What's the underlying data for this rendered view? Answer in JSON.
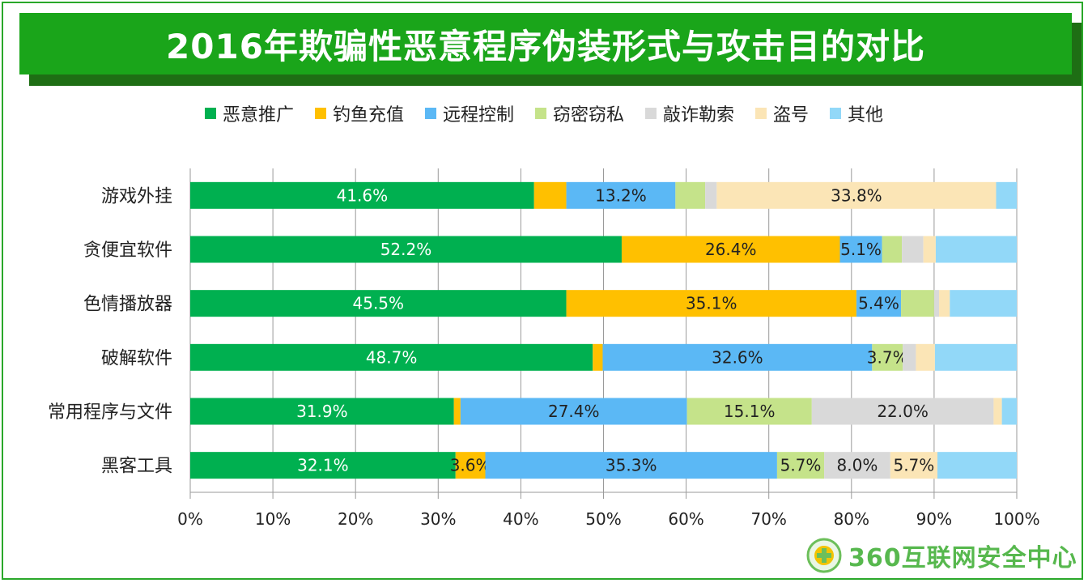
{
  "title": "2016年欺骗性恶意程序伪装形式与攻击目的对比",
  "logo_text": "360互联网安全中心",
  "chart_data": {
    "type": "bar",
    "orientation": "horizontal",
    "stacked": "percent",
    "categories": [
      "游戏外挂",
      "贪便宜软件",
      "色情播放器",
      "破解软件",
      "常用程序与文件",
      "黑客工具"
    ],
    "series": [
      {
        "name": "恶意推广",
        "color": "#00b050",
        "values": [
          41.6,
          52.2,
          45.5,
          48.7,
          31.9,
          32.1
        ],
        "labels": [
          "41.6%",
          "52.2%",
          "45.5%",
          "48.7%",
          "31.9%",
          "32.1%"
        ]
      },
      {
        "name": "钓鱼充值",
        "color": "#ffc000",
        "values": [
          3.9,
          26.4,
          35.1,
          1.2,
          0.8,
          3.6
        ],
        "labels": [
          "",
          "26.4%",
          "35.1%",
          "",
          "",
          "3.6%"
        ]
      },
      {
        "name": "远程控制",
        "color": "#5bb8f5",
        "values": [
          13.2,
          5.1,
          5.4,
          32.6,
          27.4,
          35.3
        ],
        "labels": [
          "13.2%",
          "5.1%",
          "5.4%",
          "32.6%",
          "27.4%",
          "35.3%"
        ]
      },
      {
        "name": "窃密窃私",
        "color": "#c5e38a",
        "values": [
          3.6,
          2.4,
          4.0,
          3.7,
          15.1,
          5.7
        ],
        "labels": [
          "",
          "",
          "",
          "3.7%",
          "15.1%",
          "5.7%"
        ]
      },
      {
        "name": "敲诈勒索",
        "color": "#d9d9d9",
        "values": [
          1.4,
          2.6,
          0.6,
          1.6,
          22.0,
          8.0
        ],
        "labels": [
          "",
          "",
          "",
          "",
          "22.0%",
          "8.0%"
        ]
      },
      {
        "name": "盗号",
        "color": "#fbe5b6",
        "values": [
          33.8,
          1.5,
          1.3,
          2.3,
          1.0,
          5.7
        ],
        "labels": [
          "33.8%",
          "",
          "",
          "",
          "",
          "5.7%"
        ]
      },
      {
        "name": "其他",
        "color": "#92d8f8",
        "values": [
          2.5,
          9.8,
          8.1,
          9.9,
          1.8,
          9.6
        ],
        "labels": [
          "",
          "",
          "",
          "",
          "",
          ""
        ]
      }
    ],
    "x_ticks": [
      "0%",
      "10%",
      "20%",
      "30%",
      "40%",
      "50%",
      "60%",
      "70%",
      "80%",
      "90%",
      "100%"
    ],
    "xlim": [
      0,
      100
    ],
    "grid": true,
    "legend": "top"
  }
}
